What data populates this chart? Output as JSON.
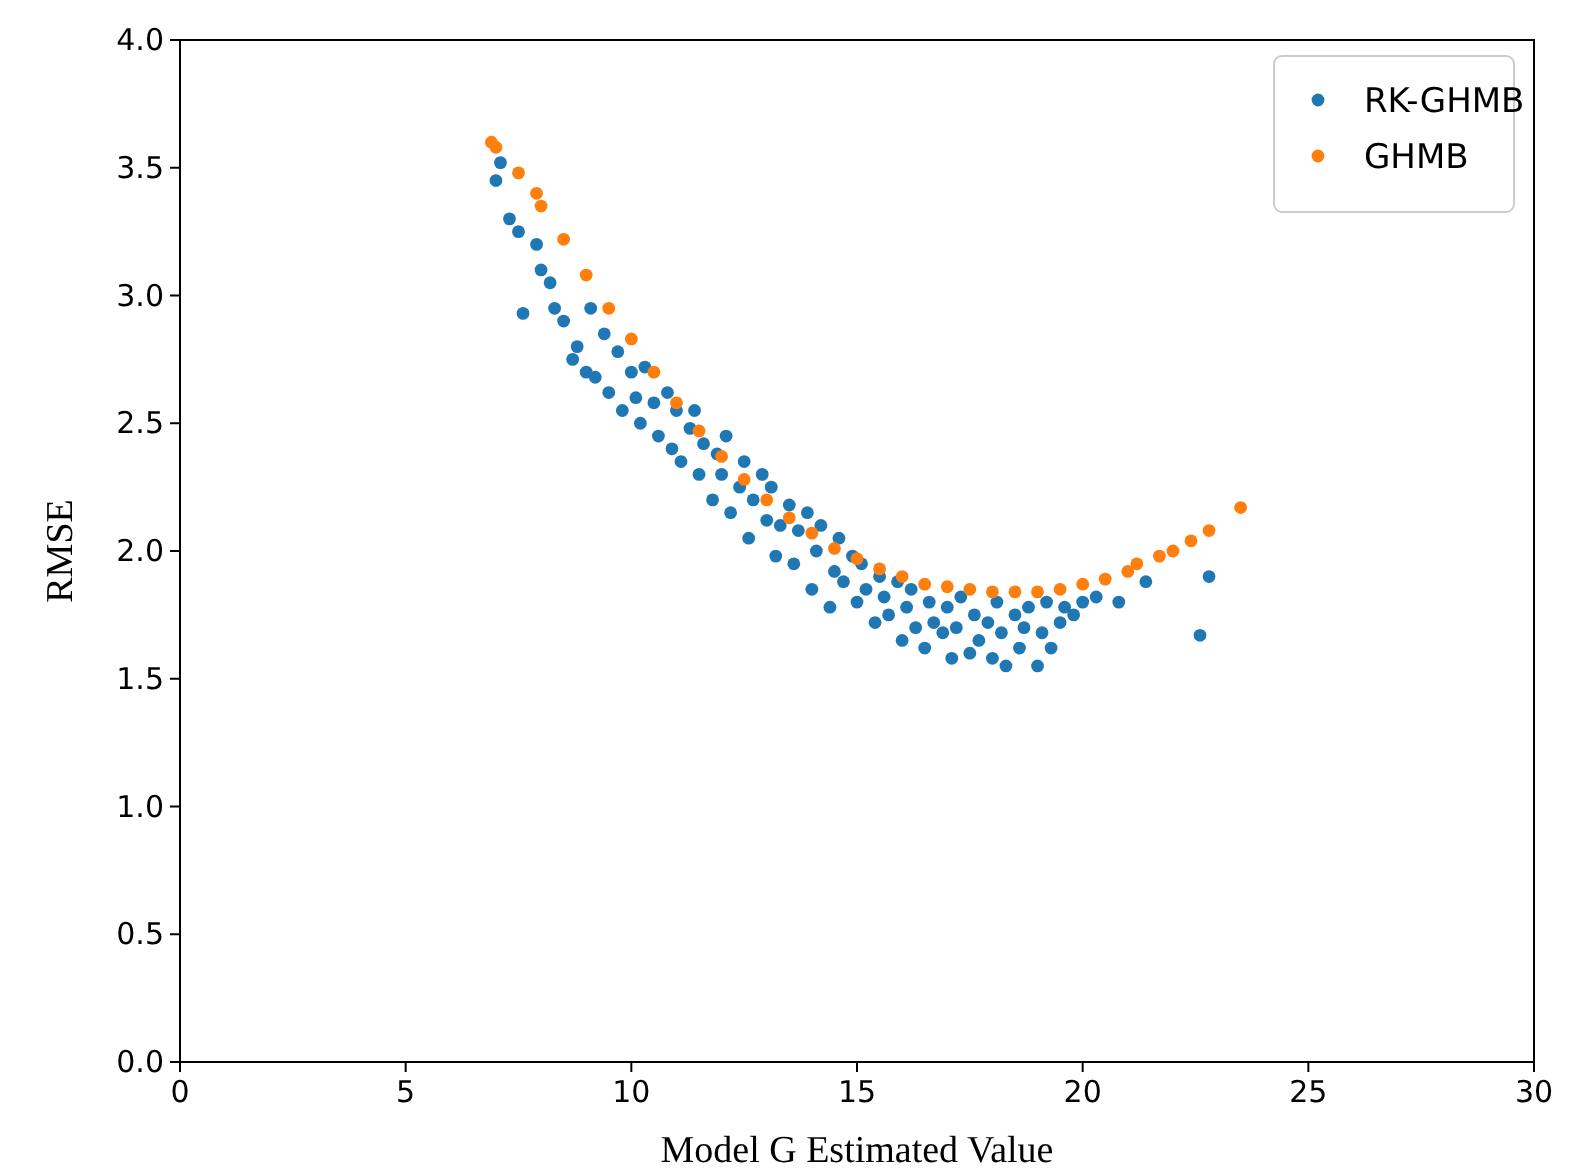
{
  "chart_data": {
    "type": "scatter",
    "xlabel": "Model G Estimated Value",
    "ylabel": "RMSE",
    "xlim": [
      0,
      30
    ],
    "ylim": [
      0,
      4
    ],
    "xticks": [
      0,
      5,
      10,
      15,
      20,
      25,
      30
    ],
    "yticks": [
      {
        "value": 0,
        "label": "0.0"
      },
      {
        "value": 0.5,
        "label": "0.5"
      },
      {
        "value": 1,
        "label": "1.0"
      },
      {
        "value": 1.5,
        "label": "1.5"
      },
      {
        "value": 2,
        "label": "2.0"
      },
      {
        "value": 2.5,
        "label": "2.5"
      },
      {
        "value": 3,
        "label": "3.0"
      },
      {
        "value": 3.5,
        "label": "3.5"
      },
      {
        "value": 4,
        "label": "4.0"
      }
    ],
    "grid": false,
    "legend": "top right",
    "marker": "circle",
    "series": [
      {
        "name": "RK-GHMB",
        "color": "#1f77b4",
        "x": [
          7.0,
          7.1,
          7.3,
          7.6,
          7.5,
          7.9,
          8.0,
          8.2,
          8.3,
          8.5,
          8.7,
          8.8,
          9.0,
          9.2,
          9.1,
          9.4,
          9.5,
          9.7,
          9.8,
          10.0,
          10.1,
          10.2,
          10.3,
          10.5,
          10.6,
          10.8,
          10.9,
          11.0,
          11.1,
          11.3,
          11.4,
          11.5,
          11.6,
          11.8,
          11.9,
          12.0,
          12.1,
          12.2,
          12.4,
          12.5,
          12.6,
          12.7,
          12.9,
          13.0,
          13.1,
          13.2,
          13.3,
          13.5,
          13.6,
          13.7,
          13.9,
          14.0,
          14.1,
          14.2,
          14.4,
          14.5,
          14.6,
          14.7,
          14.9,
          15.0,
          15.1,
          15.2,
          15.4,
          15.5,
          15.6,
          15.7,
          15.9,
          16.0,
          16.1,
          16.2,
          16.3,
          16.5,
          16.6,
          16.7,
          16.9,
          17.0,
          17.1,
          17.2,
          17.3,
          17.5,
          17.6,
          17.7,
          17.9,
          18.0,
          18.1,
          18.2,
          18.3,
          18.5,
          18.6,
          18.7,
          18.8,
          19.0,
          19.1,
          19.2,
          19.3,
          19.5,
          19.6,
          19.8,
          20.0,
          20.3,
          20.8,
          21.4,
          22.6,
          22.8
        ],
        "values": [
          3.45,
          3.52,
          3.3,
          2.93,
          3.25,
          3.2,
          3.1,
          3.05,
          2.95,
          2.9,
          2.75,
          2.8,
          2.7,
          2.68,
          2.95,
          2.85,
          2.62,
          2.78,
          2.55,
          2.7,
          2.6,
          2.5,
          2.72,
          2.58,
          2.45,
          2.62,
          2.4,
          2.55,
          2.35,
          2.48,
          2.55,
          2.3,
          2.42,
          2.2,
          2.38,
          2.3,
          2.45,
          2.15,
          2.25,
          2.35,
          2.05,
          2.2,
          2.3,
          2.12,
          2.25,
          1.98,
          2.1,
          2.18,
          1.95,
          2.08,
          2.15,
          1.85,
          2.0,
          2.1,
          1.78,
          1.92,
          2.05,
          1.88,
          1.98,
          1.8,
          1.95,
          1.85,
          1.72,
          1.9,
          1.82,
          1.75,
          1.88,
          1.65,
          1.78,
          1.85,
          1.7,
          1.62,
          1.8,
          1.72,
          1.68,
          1.78,
          1.58,
          1.7,
          1.82,
          1.6,
          1.75,
          1.65,
          1.72,
          1.58,
          1.8,
          1.68,
          1.55,
          1.75,
          1.62,
          1.7,
          1.78,
          1.55,
          1.68,
          1.8,
          1.62,
          1.72,
          1.78,
          1.75,
          1.8,
          1.82,
          1.8,
          1.88,
          1.67,
          1.9
        ]
      },
      {
        "name": "GHMB",
        "color": "#ff7f0e",
        "x": [
          6.9,
          7.0,
          7.5,
          7.9,
          8.0,
          8.5,
          9.0,
          9.5,
          10.0,
          10.5,
          11.0,
          11.5,
          12.0,
          12.5,
          13.0,
          13.5,
          14.0,
          14.5,
          15.0,
          15.5,
          16.0,
          16.5,
          17.0,
          17.5,
          18.0,
          18.5,
          19.0,
          19.5,
          20.0,
          20.5,
          21.0,
          21.2,
          21.7,
          22.0,
          22.4,
          22.8,
          23.5
        ],
        "values": [
          3.6,
          3.58,
          3.48,
          3.4,
          3.35,
          3.22,
          3.08,
          2.95,
          2.83,
          2.7,
          2.58,
          2.47,
          2.37,
          2.28,
          2.2,
          2.13,
          2.07,
          2.01,
          1.97,
          1.93,
          1.9,
          1.87,
          1.86,
          1.85,
          1.84,
          1.84,
          1.84,
          1.85,
          1.87,
          1.89,
          1.92,
          1.95,
          1.98,
          2.0,
          2.04,
          2.08,
          2.17
        ]
      }
    ]
  }
}
